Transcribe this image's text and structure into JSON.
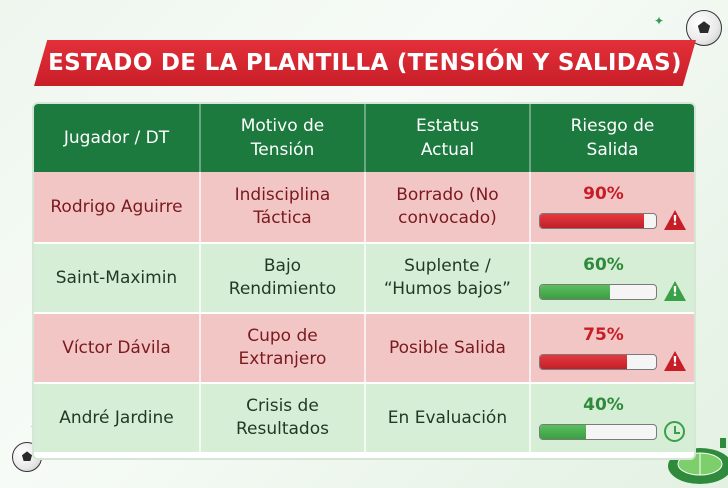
{
  "title": "ESTADO DE LA PLANTILLA (TENSIÓN Y SALIDAS)",
  "headers": {
    "player": "Jugador / DT",
    "reason": "Motivo de Tensión",
    "status": "Estatus Actual",
    "risk": "Riesgo de Salida"
  },
  "rows": [
    {
      "player": "Rodrigo Aguirre",
      "reason": "Indisciplina Táctica",
      "status": "Borrado (No convocado)",
      "risk_label": "90%",
      "risk_value": 0.9,
      "color": "red",
      "icon": "warning-icon"
    },
    {
      "player": "Saint-Maximin",
      "reason": "Bajo Rendimiento",
      "status": "Suplente / “Humos bajos”",
      "risk_label": "60%",
      "risk_value": 0.6,
      "color": "green",
      "icon": "warning-icon"
    },
    {
      "player": "Víctor Dávila",
      "reason": "Cupo de Extranjero",
      "status": "Posible Salida",
      "risk_label": "75%",
      "risk_value": 0.75,
      "color": "red",
      "icon": "warning-icon"
    },
    {
      "player": "André Jardine",
      "reason": "Crisis de Resultados",
      "status": "En Evaluación",
      "risk_label": "40%",
      "risk_value": 0.4,
      "color": "green",
      "icon": "clock-icon"
    }
  ],
  "colors": {
    "header": "#1c7a3f",
    "banner": "#d62630",
    "red_row": "#f3c6c6",
    "green_row": "#d6edd6"
  }
}
